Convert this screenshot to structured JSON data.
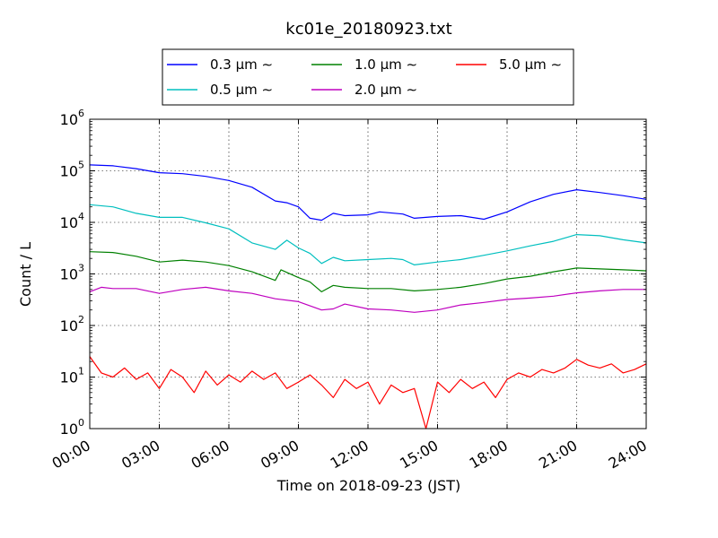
{
  "chart_data": {
    "type": "line",
    "title": "kc01e_20180923.txt",
    "xlabel": "Time on 2018-09-23 (JST)",
    "ylabel": "Count / L",
    "yscale": "log",
    "ylim": [
      1,
      1000000
    ],
    "xlim": [
      "00:00",
      "24:00"
    ],
    "x_tick_labels": [
      "00:00",
      "03:00",
      "06:00",
      "09:00",
      "12:00",
      "15:00",
      "18:00",
      "21:00",
      "24:00"
    ],
    "y_tick_labels": [
      {
        "base": "10",
        "exp": "0"
      },
      {
        "base": "10",
        "exp": "1"
      },
      {
        "base": "10",
        "exp": "2"
      },
      {
        "base": "10",
        "exp": "3"
      },
      {
        "base": "10",
        "exp": "4"
      },
      {
        "base": "10",
        "exp": "5"
      },
      {
        "base": "10",
        "exp": "6"
      }
    ],
    "grid": true,
    "legend_position": "top-center-outside",
    "series": [
      {
        "name": "0.3 μm ∼",
        "color": "#0000ff",
        "points": [
          [
            "00:00",
            130000
          ],
          [
            "01:00",
            125000
          ],
          [
            "02:00",
            110000
          ],
          [
            "03:00",
            92000
          ],
          [
            "04:00",
            88000
          ],
          [
            "05:00",
            78000
          ],
          [
            "06:00",
            65000
          ],
          [
            "07:00",
            48000
          ],
          [
            "08:00",
            26000
          ],
          [
            "08:30",
            24000
          ],
          [
            "09:00",
            20000
          ],
          [
            "09:30",
            12000
          ],
          [
            "10:00",
            11000
          ],
          [
            "10:30",
            15000
          ],
          [
            "11:00",
            13500
          ],
          [
            "12:00",
            14000
          ],
          [
            "12:30",
            16000
          ],
          [
            "13:30",
            14500
          ],
          [
            "14:00",
            12000
          ],
          [
            "15:00",
            13000
          ],
          [
            "16:00",
            13500
          ],
          [
            "17:00",
            11500
          ],
          [
            "18:00",
            16000
          ],
          [
            "19:00",
            25000
          ],
          [
            "20:00",
            35000
          ],
          [
            "21:00",
            43000
          ],
          [
            "22:00",
            38000
          ],
          [
            "23:00",
            33000
          ],
          [
            "24:00",
            28000
          ]
        ]
      },
      {
        "name": "0.5 μm ∼",
        "color": "#00bfbf",
        "points": [
          [
            "00:00",
            22000
          ],
          [
            "01:00",
            20000
          ],
          [
            "02:00",
            15000
          ],
          [
            "03:00",
            12500
          ],
          [
            "04:00",
            12500
          ],
          [
            "05:00",
            9800
          ],
          [
            "06:00",
            7500
          ],
          [
            "07:00",
            4000
          ],
          [
            "08:00",
            3000
          ],
          [
            "08:30",
            4500
          ],
          [
            "09:00",
            3200
          ],
          [
            "09:30",
            2500
          ],
          [
            "10:00",
            1600
          ],
          [
            "10:30",
            2100
          ],
          [
            "11:00",
            1800
          ],
          [
            "12:00",
            1900
          ],
          [
            "13:00",
            2000
          ],
          [
            "13:30",
            1900
          ],
          [
            "14:00",
            1500
          ],
          [
            "15:00",
            1700
          ],
          [
            "16:00",
            1900
          ],
          [
            "17:00",
            2300
          ],
          [
            "18:00",
            2800
          ],
          [
            "19:00",
            3500
          ],
          [
            "20:00",
            4300
          ],
          [
            "21:00",
            5800
          ],
          [
            "22:00",
            5500
          ],
          [
            "23:00",
            4600
          ],
          [
            "24:00",
            4000
          ]
        ]
      },
      {
        "name": "1.0 μm ∼",
        "color": "#008000",
        "points": [
          [
            "00:00",
            2700
          ],
          [
            "01:00",
            2600
          ],
          [
            "02:00",
            2200
          ],
          [
            "03:00",
            1700
          ],
          [
            "04:00",
            1850
          ],
          [
            "05:00",
            1700
          ],
          [
            "06:00",
            1450
          ],
          [
            "07:00",
            1100
          ],
          [
            "08:00",
            750
          ],
          [
            "08:15",
            1200
          ],
          [
            "09:00",
            850
          ],
          [
            "09:30",
            700
          ],
          [
            "10:00",
            450
          ],
          [
            "10:30",
            600
          ],
          [
            "11:00",
            550
          ],
          [
            "12:00",
            520
          ],
          [
            "13:00",
            520
          ],
          [
            "14:00",
            470
          ],
          [
            "15:00",
            500
          ],
          [
            "16:00",
            550
          ],
          [
            "17:00",
            650
          ],
          [
            "18:00",
            800
          ],
          [
            "19:00",
            900
          ],
          [
            "20:00",
            1100
          ],
          [
            "21:00",
            1300
          ],
          [
            "22:00",
            1250
          ],
          [
            "23:00",
            1200
          ],
          [
            "24:00",
            1150
          ]
        ]
      },
      {
        "name": "2.0 μm ∼",
        "color": "#bf00bf",
        "points": [
          [
            "00:00",
            450
          ],
          [
            "00:30",
            550
          ],
          [
            "01:00",
            520
          ],
          [
            "02:00",
            520
          ],
          [
            "03:00",
            420
          ],
          [
            "04:00",
            500
          ],
          [
            "05:00",
            550
          ],
          [
            "06:00",
            470
          ],
          [
            "07:00",
            420
          ],
          [
            "08:00",
            330
          ],
          [
            "09:00",
            290
          ],
          [
            "10:00",
            200
          ],
          [
            "10:30",
            210
          ],
          [
            "11:00",
            260
          ],
          [
            "12:00",
            210
          ],
          [
            "13:00",
            200
          ],
          [
            "14:00",
            180
          ],
          [
            "15:00",
            200
          ],
          [
            "16:00",
            250
          ],
          [
            "17:00",
            280
          ],
          [
            "18:00",
            320
          ],
          [
            "19:00",
            340
          ],
          [
            "20:00",
            370
          ],
          [
            "21:00",
            430
          ],
          [
            "22:00",
            470
          ],
          [
            "23:00",
            500
          ],
          [
            "24:00",
            500
          ]
        ]
      },
      {
        "name": "5.0 μm ∼",
        "color": "#ff0000",
        "points": [
          [
            "00:00",
            25
          ],
          [
            "00:30",
            12
          ],
          [
            "01:00",
            10
          ],
          [
            "01:30",
            15
          ],
          [
            "02:00",
            9
          ],
          [
            "02:30",
            12
          ],
          [
            "03:00",
            6
          ],
          [
            "03:30",
            14
          ],
          [
            "04:00",
            10
          ],
          [
            "04:30",
            5
          ],
          [
            "05:00",
            13
          ],
          [
            "05:30",
            7
          ],
          [
            "06:00",
            11
          ],
          [
            "06:30",
            8
          ],
          [
            "07:00",
            13
          ],
          [
            "07:30",
            9
          ],
          [
            "08:00",
            12
          ],
          [
            "08:30",
            6
          ],
          [
            "09:00",
            8
          ],
          [
            "09:30",
            11
          ],
          [
            "10:00",
            7
          ],
          [
            "10:30",
            4
          ],
          [
            "11:00",
            9
          ],
          [
            "11:30",
            6
          ],
          [
            "12:00",
            8
          ],
          [
            "12:30",
            3
          ],
          [
            "13:00",
            7
          ],
          [
            "13:30",
            5
          ],
          [
            "14:00",
            6
          ],
          [
            "14:30",
            1
          ],
          [
            "15:00",
            8
          ],
          [
            "15:30",
            5
          ],
          [
            "16:00",
            9
          ],
          [
            "16:30",
            6
          ],
          [
            "17:00",
            8
          ],
          [
            "17:30",
            4
          ],
          [
            "18:00",
            9
          ],
          [
            "18:30",
            12
          ],
          [
            "19:00",
            10
          ],
          [
            "19:30",
            14
          ],
          [
            "20:00",
            12
          ],
          [
            "20:30",
            15
          ],
          [
            "21:00",
            22
          ],
          [
            "21:30",
            17
          ],
          [
            "22:00",
            15
          ],
          [
            "22:30",
            18
          ],
          [
            "23:00",
            12
          ],
          [
            "23:30",
            14
          ],
          [
            "24:00",
            18
          ]
        ]
      }
    ]
  }
}
